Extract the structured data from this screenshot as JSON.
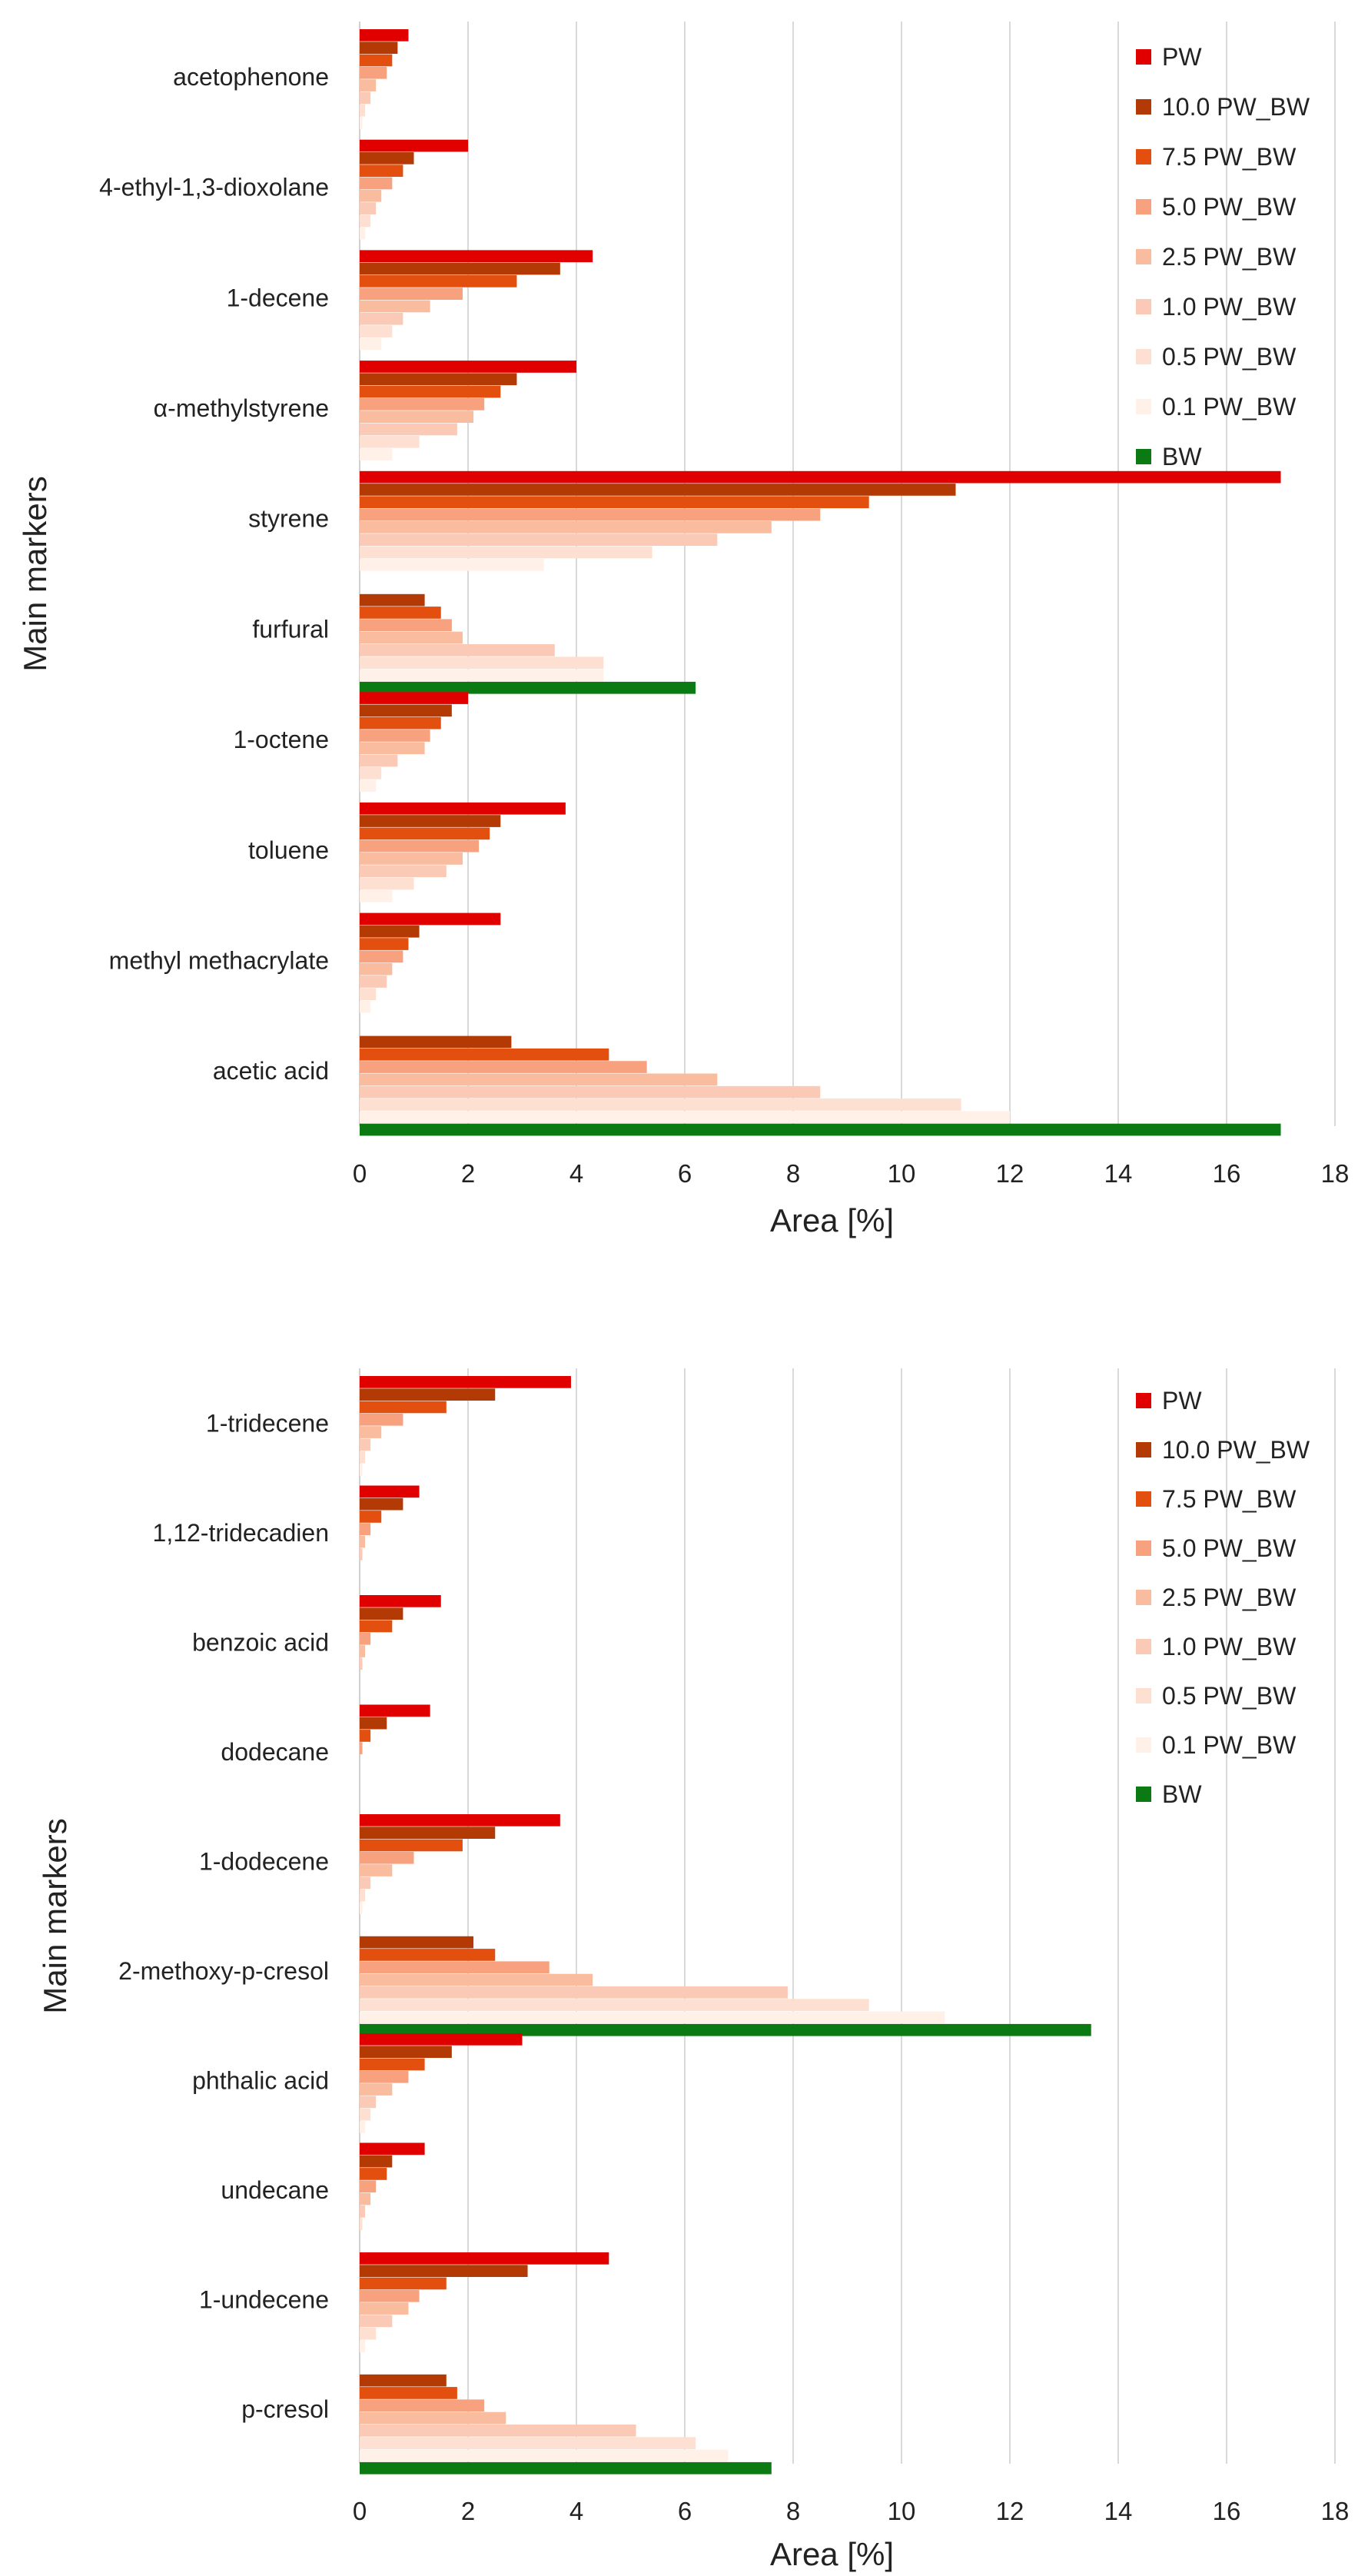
{
  "chart_data": [
    {
      "type": "bar",
      "orientation": "horizontal",
      "xlabel": "Area [%]",
      "ylabel": "Main markers",
      "xlim": [
        0,
        18
      ],
      "xticks": [
        "0",
        "2",
        "4",
        "6",
        "8",
        "10",
        "12",
        "14",
        "16",
        "18"
      ],
      "grid": "vertical",
      "legend_position": "top-right",
      "categories": [
        "acetophenone",
        "4-ethyl-1,3-dioxolane",
        "1-decene",
        "α-methylstyrene",
        "styrene",
        "furfural",
        "1-octene",
        "toluene",
        "methyl methacrylate",
        "acetic acid"
      ],
      "series": [
        {
          "name": "PW",
          "color": "#e00000",
          "values": [
            0.9,
            2.0,
            4.3,
            4.0,
            17.0,
            0,
            2.0,
            3.8,
            2.6,
            0
          ]
        },
        {
          "name": "10.0 PW_BW",
          "color": "#b43a05",
          "values": [
            0.7,
            1.0,
            3.7,
            2.9,
            11.0,
            1.2,
            1.7,
            2.6,
            1.1,
            2.8
          ]
        },
        {
          "name": "7.5 PW_BW",
          "color": "#e34f0f",
          "values": [
            0.6,
            0.8,
            2.9,
            2.6,
            9.4,
            1.5,
            1.5,
            2.4,
            0.9,
            4.6
          ]
        },
        {
          "name": "5.0 PW_BW",
          "color": "#f7a17e",
          "values": [
            0.5,
            0.6,
            1.9,
            2.3,
            8.5,
            1.7,
            1.3,
            2.2,
            0.8,
            5.3
          ]
        },
        {
          "name": "2.5 PW_BW",
          "color": "#f9bc9f",
          "values": [
            0.3,
            0.4,
            1.3,
            2.1,
            7.6,
            1.9,
            1.2,
            1.9,
            0.6,
            6.6
          ]
        },
        {
          "name": "1.0 PW_BW",
          "color": "#fbcab6",
          "values": [
            0.2,
            0.3,
            0.8,
            1.8,
            6.6,
            3.6,
            0.7,
            1.6,
            0.5,
            8.5
          ]
        },
        {
          "name": "0.5 PW_BW",
          "color": "#fde0d1",
          "values": [
            0.1,
            0.2,
            0.6,
            1.1,
            5.4,
            4.5,
            0.4,
            1.0,
            0.3,
            11.1
          ]
        },
        {
          "name": "0.1 PW_BW",
          "color": "#fff0e8",
          "values": [
            0.05,
            0.1,
            0.4,
            0.6,
            3.4,
            4.5,
            0.3,
            0.6,
            0.2,
            12.0
          ]
        },
        {
          "name": "BW",
          "color": "#0b7a12",
          "values": [
            0,
            0,
            0,
            0,
            0,
            6.2,
            0,
            0,
            0,
            17.0
          ]
        }
      ]
    },
    {
      "type": "bar",
      "orientation": "horizontal",
      "xlabel": "Area [%]",
      "ylabel": "Main markers",
      "xlim": [
        0,
        18
      ],
      "xticks": [
        "0",
        "2",
        "4",
        "6",
        "8",
        "10",
        "12",
        "14",
        "16",
        "18"
      ],
      "grid": "vertical",
      "legend_position": "top-right",
      "categories": [
        "1-tridecene",
        "1,12-tridecadien",
        "benzoic acid",
        "dodecane",
        "1-dodecene",
        "2-methoxy-p-cresol",
        "phthalic acid",
        "undecane",
        "1-undecene",
        "p-cresol"
      ],
      "series": [
        {
          "name": "PW",
          "color": "#e00000",
          "values": [
            3.9,
            1.1,
            1.5,
            1.3,
            3.7,
            0,
            3.0,
            1.2,
            4.6,
            0
          ]
        },
        {
          "name": "10.0 PW_BW",
          "color": "#b43a05",
          "values": [
            2.5,
            0.8,
            0.8,
            0.5,
            2.5,
            2.1,
            1.7,
            0.6,
            3.1,
            1.6
          ]
        },
        {
          "name": "7.5 PW_BW",
          "color": "#e34f0f",
          "values": [
            1.6,
            0.4,
            0.6,
            0.2,
            1.9,
            2.5,
            1.2,
            0.5,
            1.6,
            1.8
          ]
        },
        {
          "name": "5.0 PW_BW",
          "color": "#f7a17e",
          "values": [
            0.8,
            0.2,
            0.2,
            0.05,
            1.0,
            3.5,
            0.9,
            0.3,
            1.1,
            2.3
          ]
        },
        {
          "name": "2.5 PW_BW",
          "color": "#f9bc9f",
          "values": [
            0.4,
            0.1,
            0.1,
            0,
            0.6,
            4.3,
            0.6,
            0.2,
            0.9,
            2.7
          ]
        },
        {
          "name": "1.0 PW_BW",
          "color": "#fbcab6",
          "values": [
            0.2,
            0.05,
            0.05,
            0,
            0.2,
            7.9,
            0.3,
            0.1,
            0.6,
            5.1
          ]
        },
        {
          "name": "0.5 PW_BW",
          "color": "#fde0d1",
          "values": [
            0.1,
            0,
            0,
            0,
            0.1,
            9.4,
            0.2,
            0.05,
            0.3,
            6.2
          ]
        },
        {
          "name": "0.1 PW_BW",
          "color": "#fff0e8",
          "values": [
            0.05,
            0,
            0,
            0,
            0.05,
            10.8,
            0.1,
            0,
            0.1,
            6.8
          ]
        },
        {
          "name": "BW",
          "color": "#0b7a12",
          "values": [
            0,
            0,
            0,
            0,
            0,
            13.5,
            0,
            0,
            0,
            7.6
          ]
        }
      ]
    }
  ]
}
